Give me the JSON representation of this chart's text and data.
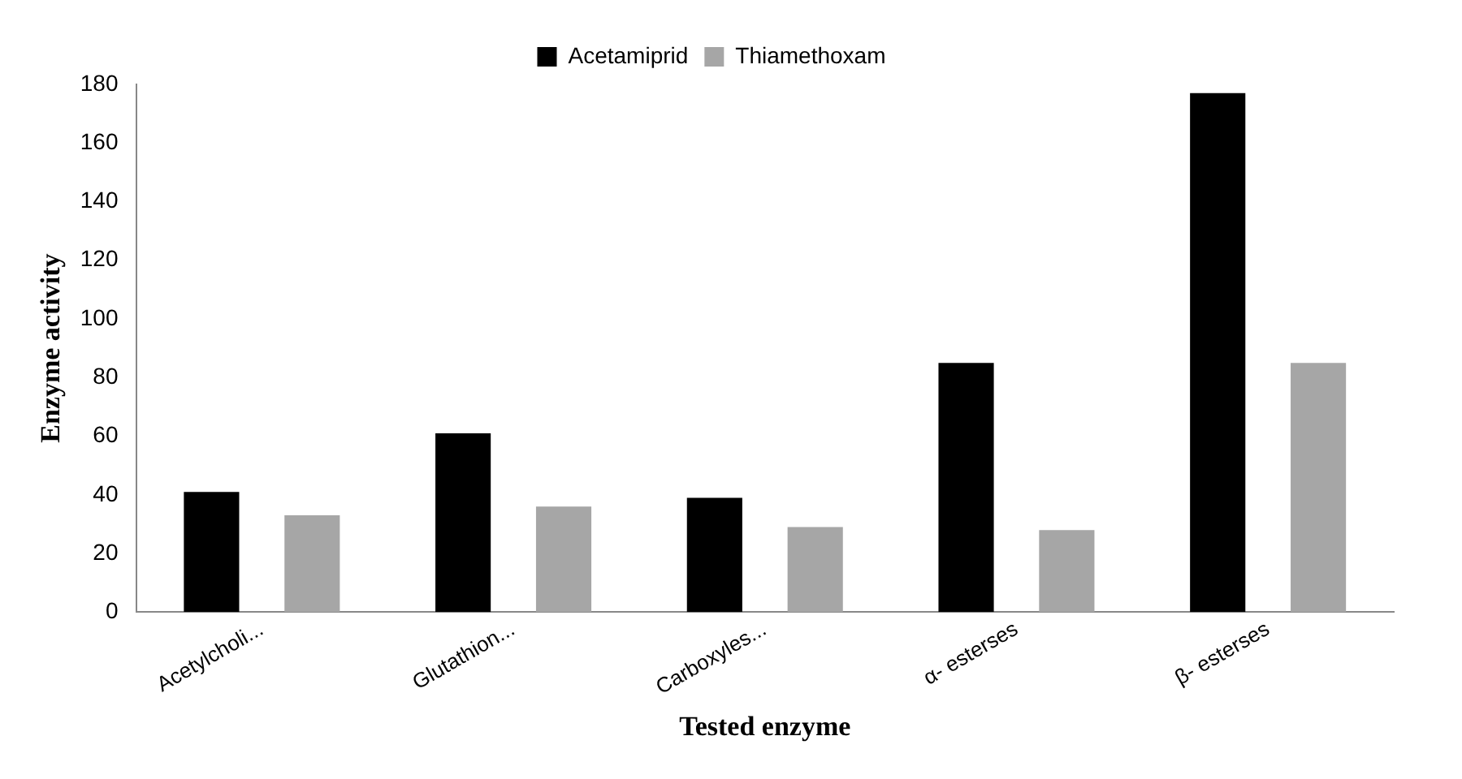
{
  "chart_data": {
    "type": "bar",
    "xlabel": "Tested enzyme",
    "ylabel": "Enzyme activity",
    "categories": [
      "Acetylcholi...",
      "Glutathion...",
      "Carboxyles...",
      "α- esterses",
      "β- esterses"
    ],
    "series": [
      {
        "name": "Acetamiprid",
        "color": "#000000",
        "values": [
          41,
          61,
          39,
          85,
          177
        ]
      },
      {
        "name": "Thiamethoxam",
        "color": "#a6a6a6",
        "values": [
          33,
          36,
          29,
          28,
          85
        ]
      }
    ],
    "ylim": [
      0,
      180
    ],
    "yticks": [
      0,
      20,
      40,
      60,
      80,
      100,
      120,
      140,
      160,
      180
    ],
    "grid": false,
    "legend": "top"
  }
}
